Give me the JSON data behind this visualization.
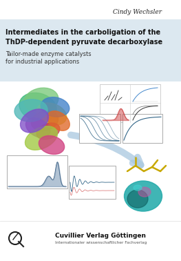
{
  "author": "Cindy Wechsler",
  "title_line1": "Intermediates in the carboligation of the",
  "title_line2": "ThDP-dependent pyruvate decarboxylase",
  "subtitle_line1": "Tailor-made enzyme catalysts",
  "subtitle_line2": "for industrial applications",
  "publisher_name": "Cuvillier Verlag Göttingen",
  "publisher_sub": "Internationaler wissenschaftlicher Fachverlag",
  "bg_color": "#ffffff",
  "header_bg": "#dce8f0",
  "title_color": "#111111",
  "author_color": "#222222",
  "subtitle_color": "#333333",
  "publisher_color": "#111111",
  "fig_width": 2.63,
  "fig_height": 3.78,
  "dpi": 100
}
